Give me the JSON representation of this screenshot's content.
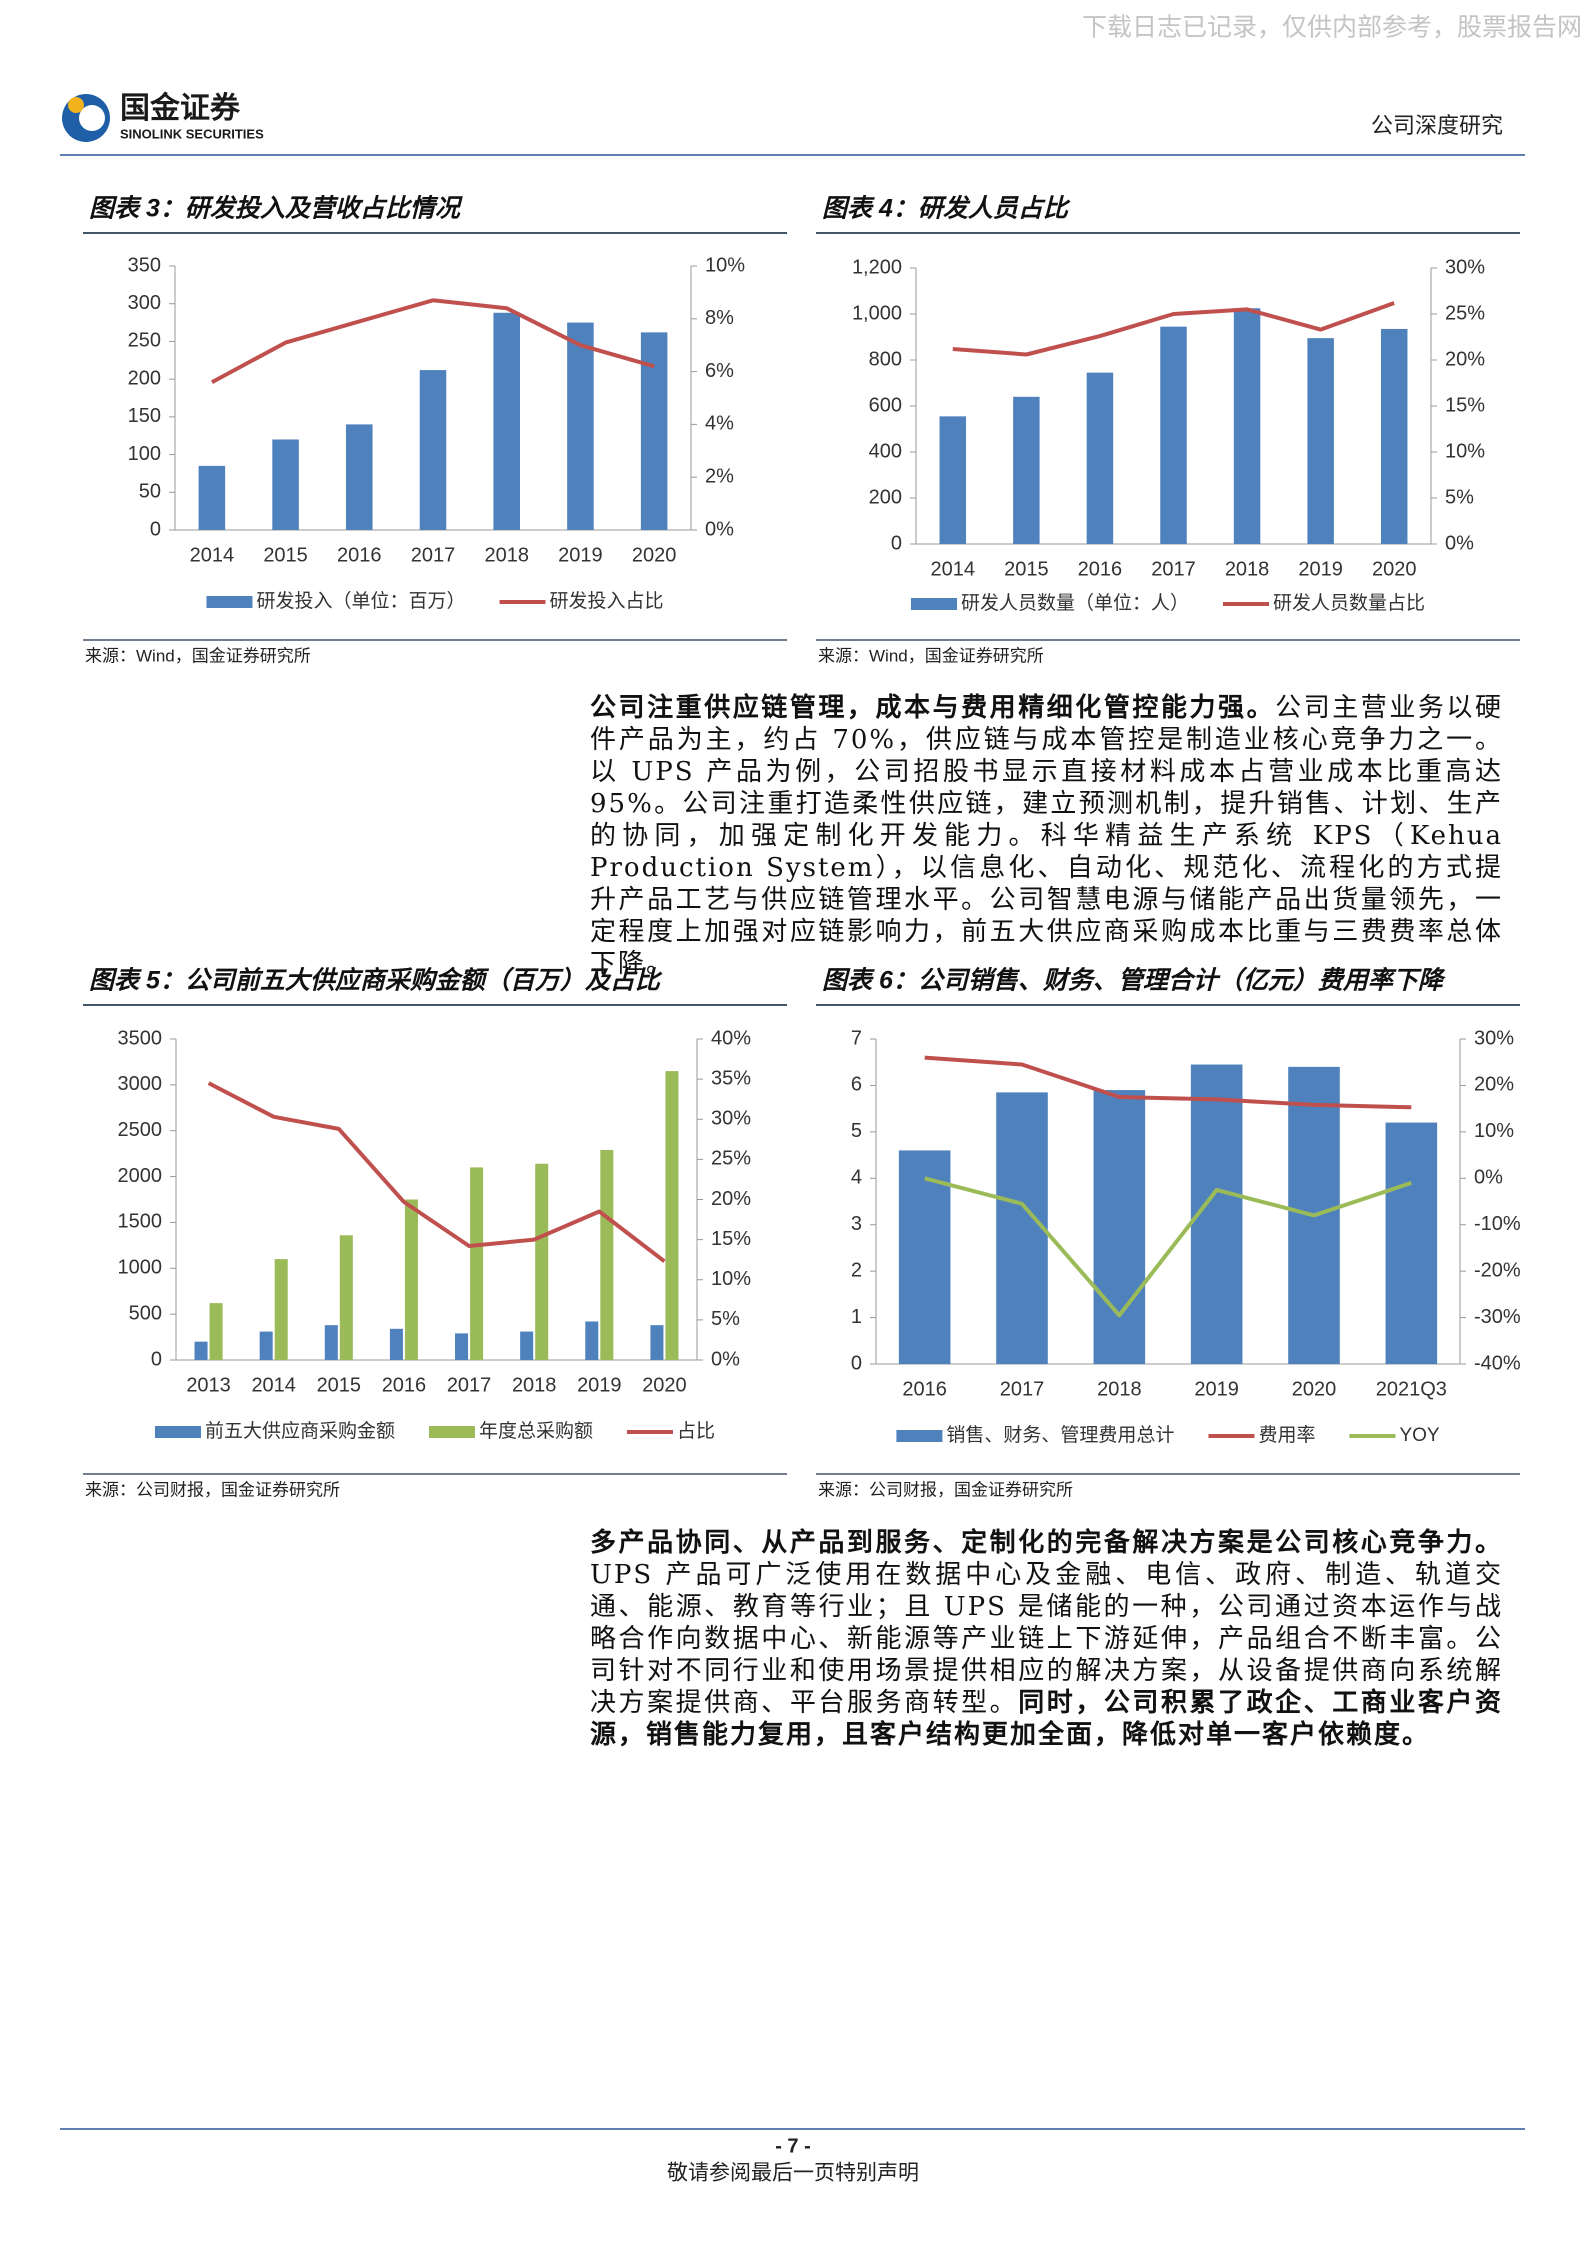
{
  "header": {
    "watermark": "下载日志已记录，仅供内部参考，股票报告网",
    "logo_cn": "国金证券",
    "logo_en": "SINOLINK SECURITIES",
    "section": "公司深度研究"
  },
  "chart_data": [
    {
      "type": "bar",
      "title": "图表 3：研发投入及营收占比情况",
      "source": "来源：Wind，国金证券研究所",
      "categories": [
        "2014",
        "2015",
        "2016",
        "2017",
        "2018",
        "2019",
        "2020"
      ],
      "series": [
        {
          "name": "研发投入（单位：百万）",
          "type": "bar",
          "color": "#4f81bd",
          "values": [
            85,
            120,
            140,
            212,
            288,
            275,
            262
          ]
        },
        {
          "name": "研发投入占比",
          "type": "line",
          "axis": "y2",
          "color": "#c0504d",
          "values": [
            5.6,
            7.1,
            7.9,
            8.7,
            8.4,
            7.0,
            6.2
          ]
        }
      ],
      "ylim": [
        0,
        350
      ],
      "yticks": [
        0,
        50,
        100,
        150,
        200,
        250,
        300,
        350
      ],
      "y2lim": [
        0,
        10
      ],
      "y2ticks": [
        {
          "value": 0,
          "label": "0%"
        },
        {
          "value": 2,
          "label": "2%"
        },
        {
          "value": 4,
          "label": "4%"
        },
        {
          "value": 6,
          "label": "6%"
        },
        {
          "value": 8,
          "label": "8%"
        },
        {
          "value": 10,
          "label": "10%"
        }
      ]
    },
    {
      "type": "bar",
      "title": "图表 4：研发人员占比",
      "source": "来源：Wind，国金证券研究所",
      "categories": [
        "2014",
        "2015",
        "2016",
        "2017",
        "2018",
        "2019",
        "2020"
      ],
      "series": [
        {
          "name": "研发人员数量（单位：人）",
          "type": "bar",
          "color": "#4f81bd",
          "values": [
            555,
            640,
            745,
            945,
            1025,
            895,
            935
          ]
        },
        {
          "name": "研发人员数量占比",
          "type": "line",
          "axis": "y2",
          "color": "#c0504d",
          "values": [
            21.2,
            20.6,
            22.6,
            25.0,
            25.5,
            23.3,
            26.2
          ]
        }
      ],
      "ylim": [
        0,
        1200
      ],
      "yticks": [
        0,
        200,
        400,
        600,
        800,
        {
          "value": 1000,
          "label": "1,000"
        },
        {
          "value": 1200,
          "label": "1,200"
        }
      ],
      "y2lim": [
        0,
        30
      ],
      "y2ticks": [
        {
          "value": 0,
          "label": "0%"
        },
        {
          "value": 5,
          "label": "5%"
        },
        {
          "value": 10,
          "label": "10%"
        },
        {
          "value": 15,
          "label": "15%"
        },
        {
          "value": 20,
          "label": "20%"
        },
        {
          "value": 25,
          "label": "25%"
        },
        {
          "value": 30,
          "label": "30%"
        }
      ]
    },
    {
      "type": "bar",
      "title": "图表 5：公司前五大供应商采购金额（百万）及占比",
      "source": "来源：公司财报，国金证券研究所",
      "categories": [
        "2013",
        "2014",
        "2015",
        "2016",
        "2017",
        "2018",
        "2019",
        "2020"
      ],
      "series": [
        {
          "name": "前五大供应商采购金额",
          "type": "bar",
          "color": "#4f81bd",
          "values": [
            200,
            310,
            380,
            340,
            290,
            310,
            420,
            380
          ]
        },
        {
          "name": "年度总采购额",
          "type": "bar",
          "color": "#9bbb59",
          "values": [
            620,
            1100,
            1360,
            1750,
            2100,
            2140,
            2290,
            3150
          ]
        },
        {
          "name": "占比",
          "type": "line",
          "axis": "y2",
          "color": "#c0504d",
          "values": [
            34.5,
            30.3,
            28.8,
            19.7,
            14.2,
            15.0,
            18.5,
            12.3
          ]
        }
      ],
      "ylim": [
        0,
        3500
      ],
      "yticks": [
        0,
        500,
        1000,
        1500,
        2000,
        2500,
        3000,
        3500
      ],
      "y2lim": [
        0,
        40
      ],
      "y2ticks": [
        {
          "value": 0,
          "label": "0%"
        },
        {
          "value": 5,
          "label": "5%"
        },
        {
          "value": 10,
          "label": "10%"
        },
        {
          "value": 15,
          "label": "15%"
        },
        {
          "value": 20,
          "label": "20%"
        },
        {
          "value": 25,
          "label": "25%"
        },
        {
          "value": 30,
          "label": "30%"
        },
        {
          "value": 35,
          "label": "35%"
        },
        {
          "value": 40,
          "label": "40%"
        }
      ]
    },
    {
      "type": "bar",
      "title": "图表 6：公司销售、财务、管理合计（亿元）费用率下降",
      "source": "来源：公司财报，国金证券研究所",
      "categories": [
        "2016",
        "2017",
        "2018",
        "2019",
        "2020",
        "2021Q3"
      ],
      "series": [
        {
          "name": "销售、财务、管理费用总计",
          "type": "bar",
          "color": "#4f81bd",
          "values": [
            4.6,
            5.85,
            5.9,
            6.45,
            6.4,
            5.2
          ]
        },
        {
          "name": "费用率",
          "type": "line",
          "axis": "y2",
          "color": "#c0504d",
          "values": [
            26,
            24.5,
            17.5,
            17,
            15.8,
            15.3
          ]
        },
        {
          "name": "YOY",
          "type": "line",
          "axis": "y2",
          "color": "#9bbb59",
          "values": [
            0,
            -5.5,
            -29.5,
            -2.5,
            -8,
            -1
          ]
        }
      ],
      "ylim": [
        0,
        7
      ],
      "yticks": [
        0,
        1,
        2,
        3,
        4,
        5,
        6,
        7
      ],
      "y2lim": [
        -40,
        30
      ],
      "y2ticks": [
        {
          "value": -40,
          "label": "-40%"
        },
        {
          "value": -30,
          "label": "-30%"
        },
        {
          "value": -20,
          "label": "-20%"
        },
        {
          "value": -10,
          "label": "-10%"
        },
        {
          "value": 0,
          "label": "0%"
        },
        {
          "value": 10,
          "label": "10%"
        },
        {
          "value": 20,
          "label": "20%"
        },
        {
          "value": 30,
          "label": "30%"
        }
      ]
    }
  ],
  "paragraphs": [
    [
      {
        "text": "公司注重供应链管理，成本与费用精细化管控能力强。",
        "bold": true
      },
      {
        "text": "公司主营业务以硬件产品为主，约占 70%，供应链与成本管控是制造业核心竞争力之一。以 UPS 产品为例，公司招股书显示直接材料成本占营业成本比重高达 95%。公司注重打造柔性供应链，建立预测机制，提升销售、计划、生产的协同，加强定制化开发能力。科华精益生产系统 KPS（Kehua Production System），以信息化、自动化、规范化、流程化的方式提升产品工艺与供应链管理水平。公司智慧电源与储能产品出货量领先，一定程度上加强对应链影响力，前五大供应商采购成本比重与三费费率总体下降。",
        "bold": false
      }
    ],
    [
      {
        "text": "多产品协同、从产品到服务、定制化的完备解决方案是公司核心竞争力。",
        "bold": true
      },
      {
        "text": "UPS 产品可广泛使用在数据中心及金融、电信、政府、制造、轨道交通、能源、教育等行业；且 UPS 是储能的一种，公司通过资本运作与战略合作向数据中心、新能源等产业链上下游延伸，产品组合不断丰富。公司针对不同行业和使用场景提供相应的解决方案，从设备提供商向系统解决方案提供商、平台服务商转型。",
        "bold": false
      },
      {
        "text": "同时，公司积累了政企、工商业客户资源，销售能力复用，且客户结构更加全面，降低对单一客户依赖度。",
        "bold": true
      }
    ]
  ],
  "footer": {
    "page": "- 7 -",
    "note": "敬请参阅最后一页特别声明"
  }
}
